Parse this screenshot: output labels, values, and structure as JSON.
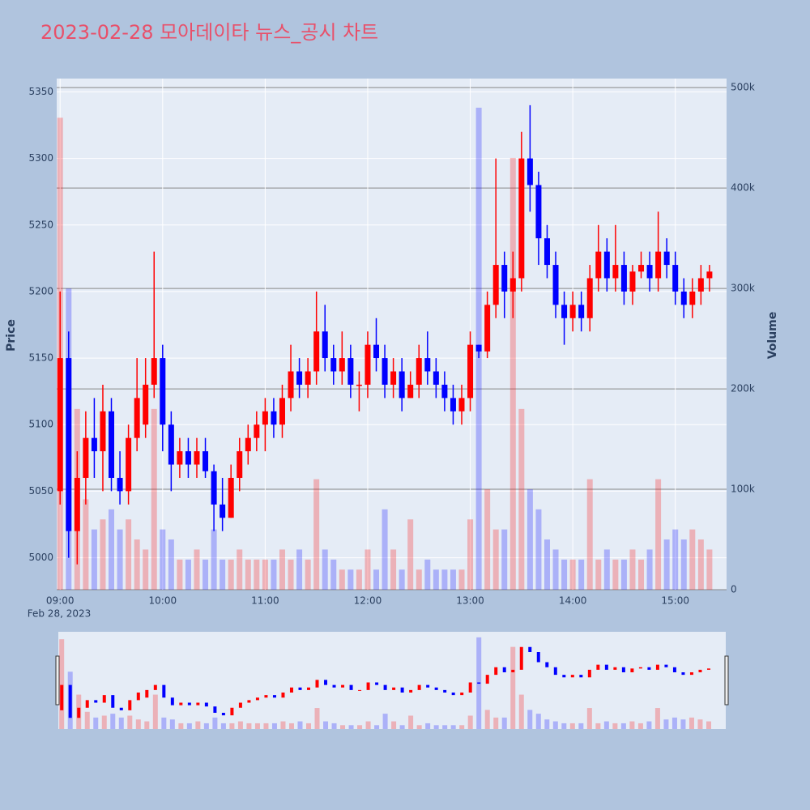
{
  "chart_data": {
    "type": "candlestick",
    "title": "2023-02-28 모아데이타 뉴스_공시 차트",
    "y_title": "Price",
    "y2_title": "Volume",
    "date_label": "Feb 28, 2023",
    "increasing_color": "#ff0000",
    "decreasing_color": "#0000ff",
    "x": [
      "09:00",
      "09:05",
      "09:10",
      "09:15",
      "09:20",
      "09:25",
      "09:30",
      "09:35",
      "09:40",
      "09:45",
      "09:50",
      "09:55",
      "10:00",
      "10:05",
      "10:10",
      "10:15",
      "10:20",
      "10:25",
      "10:30",
      "10:35",
      "10:40",
      "10:45",
      "10:50",
      "10:55",
      "11:00",
      "11:05",
      "11:10",
      "11:15",
      "11:20",
      "11:25",
      "11:30",
      "11:35",
      "11:40",
      "11:45",
      "11:50",
      "11:55",
      "12:00",
      "12:05",
      "12:10",
      "12:15",
      "12:20",
      "12:25",
      "12:30",
      "12:35",
      "12:40",
      "12:45",
      "12:50",
      "12:55",
      "13:00",
      "13:05",
      "13:10",
      "13:15",
      "13:20",
      "13:25",
      "13:30",
      "13:35",
      "13:40",
      "13:45",
      "13:50",
      "13:55",
      "14:00",
      "14:05",
      "14:10",
      "14:15",
      "14:20",
      "14:25",
      "14:30",
      "14:35",
      "14:40",
      "14:45",
      "14:50",
      "14:55",
      "15:00",
      "15:05",
      "15:10",
      "15:15",
      "15:20"
    ],
    "candles": [
      [
        5050,
        5200,
        5040,
        5150
      ],
      [
        5150,
        5170,
        5000,
        5020
      ],
      [
        5020,
        5080,
        4995,
        5060
      ],
      [
        5060,
        5110,
        5040,
        5090
      ],
      [
        5090,
        5120,
        5060,
        5080
      ],
      [
        5080,
        5130,
        5050,
        5110
      ],
      [
        5110,
        5120,
        5050,
        5060
      ],
      [
        5060,
        5080,
        5040,
        5050
      ],
      [
        5050,
        5100,
        5040,
        5090
      ],
      [
        5090,
        5150,
        5080,
        5120
      ],
      [
        5100,
        5150,
        5090,
        5130
      ],
      [
        5130,
        5230,
        5120,
        5150
      ],
      [
        5150,
        5160,
        5080,
        5100
      ],
      [
        5100,
        5110,
        5050,
        5070
      ],
      [
        5070,
        5090,
        5060,
        5080
      ],
      [
        5080,
        5090,
        5060,
        5070
      ],
      [
        5070,
        5090,
        5060,
        5080
      ],
      [
        5080,
        5090,
        5060,
        5065
      ],
      [
        5065,
        5070,
        5020,
        5040
      ],
      [
        5040,
        5060,
        5020,
        5030
      ],
      [
        5030,
        5070,
        5030,
        5060
      ],
      [
        5060,
        5090,
        5050,
        5080
      ],
      [
        5080,
        5100,
        5070,
        5090
      ],
      [
        5090,
        5110,
        5080,
        5100
      ],
      [
        5100,
        5120,
        5080,
        5110
      ],
      [
        5110,
        5120,
        5090,
        5100
      ],
      [
        5100,
        5130,
        5090,
        5120
      ],
      [
        5120,
        5160,
        5110,
        5140
      ],
      [
        5140,
        5150,
        5120,
        5130
      ],
      [
        5130,
        5150,
        5120,
        5140
      ],
      [
        5140,
        5200,
        5130,
        5170
      ],
      [
        5170,
        5190,
        5140,
        5150
      ],
      [
        5150,
        5160,
        5130,
        5140
      ],
      [
        5140,
        5170,
        5130,
        5150
      ],
      [
        5150,
        5160,
        5120,
        5130
      ],
      [
        5130,
        5140,
        5110,
        5130
      ],
      [
        5130,
        5170,
        5120,
        5160
      ],
      [
        5160,
        5180,
        5140,
        5150
      ],
      [
        5150,
        5160,
        5120,
        5130
      ],
      [
        5130,
        5150,
        5120,
        5140
      ],
      [
        5140,
        5150,
        5110,
        5120
      ],
      [
        5120,
        5140,
        5120,
        5130
      ],
      [
        5130,
        5160,
        5120,
        5150
      ],
      [
        5150,
        5170,
        5130,
        5140
      ],
      [
        5140,
        5150,
        5120,
        5130
      ],
      [
        5130,
        5140,
        5110,
        5120
      ],
      [
        5120,
        5130,
        5100,
        5110
      ],
      [
        5110,
        5130,
        5100,
        5120
      ],
      [
        5120,
        5170,
        5110,
        5160
      ],
      [
        5160,
        5160,
        5150,
        5155
      ],
      [
        5155,
        5200,
        5150,
        5190
      ],
      [
        5190,
        5300,
        5180,
        5220
      ],
      [
        5220,
        5230,
        5180,
        5200
      ],
      [
        5200,
        5230,
        5180,
        5210
      ],
      [
        5210,
        5320,
        5200,
        5300
      ],
      [
        5300,
        5340,
        5260,
        5280
      ],
      [
        5280,
        5290,
        5220,
        5240
      ],
      [
        5240,
        5250,
        5210,
        5220
      ],
      [
        5220,
        5230,
        5180,
        5190
      ],
      [
        5190,
        5200,
        5160,
        5180
      ],
      [
        5180,
        5200,
        5170,
        5190
      ],
      [
        5190,
        5200,
        5170,
        5180
      ],
      [
        5180,
        5220,
        5170,
        5210
      ],
      [
        5210,
        5250,
        5200,
        5230
      ],
      [
        5230,
        5240,
        5200,
        5210
      ],
      [
        5210,
        5250,
        5200,
        5220
      ],
      [
        5220,
        5230,
        5190,
        5200
      ],
      [
        5200,
        5220,
        5190,
        5215
      ],
      [
        5215,
        5230,
        5210,
        5220
      ],
      [
        5220,
        5230,
        5200,
        5210
      ],
      [
        5210,
        5260,
        5200,
        5230
      ],
      [
        5230,
        5240,
        5210,
        5220
      ],
      [
        5220,
        5230,
        5190,
        5200
      ],
      [
        5200,
        5210,
        5180,
        5190
      ],
      [
        5190,
        5210,
        5180,
        5200
      ],
      [
        5200,
        5220,
        5190,
        5210
      ],
      [
        5210,
        5220,
        5200,
        5215
      ]
    ],
    "volumes": [
      470000,
      300000,
      180000,
      90000,
      60000,
      70000,
      80000,
      60000,
      70000,
      50000,
      40000,
      180000,
      60000,
      50000,
      30000,
      30000,
      40000,
      30000,
      60000,
      30000,
      30000,
      40000,
      30000,
      30000,
      30000,
      30000,
      40000,
      30000,
      40000,
      30000,
      110000,
      40000,
      30000,
      20000,
      20000,
      20000,
      40000,
      20000,
      80000,
      40000,
      20000,
      70000,
      20000,
      30000,
      20000,
      20000,
      20000,
      20000,
      70000,
      480000,
      100000,
      60000,
      60000,
      430000,
      180000,
      100000,
      80000,
      50000,
      40000,
      30000,
      30000,
      30000,
      110000,
      30000,
      40000,
      30000,
      30000,
      40000,
      30000,
      40000,
      110000,
      50000,
      60000,
      50000,
      60000,
      50000,
      40000
    ],
    "xlim": [
      "08:58",
      "15:30"
    ],
    "xticks": [
      "09:00",
      "10:00",
      "11:00",
      "12:00",
      "13:00",
      "14:00",
      "15:00"
    ],
    "ylim": [
      4976,
      5360
    ],
    "yticks": [
      5000,
      5050,
      5100,
      5150,
      5200,
      5250,
      5300,
      5350
    ],
    "y2lim": [
      0,
      509000
    ],
    "y2ticks": [
      0,
      {
        "value": 100000,
        "label": "100k"
      },
      {
        "value": 200000,
        "label": "200k"
      },
      {
        "value": 300000,
        "label": "300k"
      },
      {
        "value": 400000,
        "label": "400k"
      },
      {
        "value": 500000,
        "label": "500k"
      }
    ],
    "grid": true,
    "rangeslider": true
  }
}
